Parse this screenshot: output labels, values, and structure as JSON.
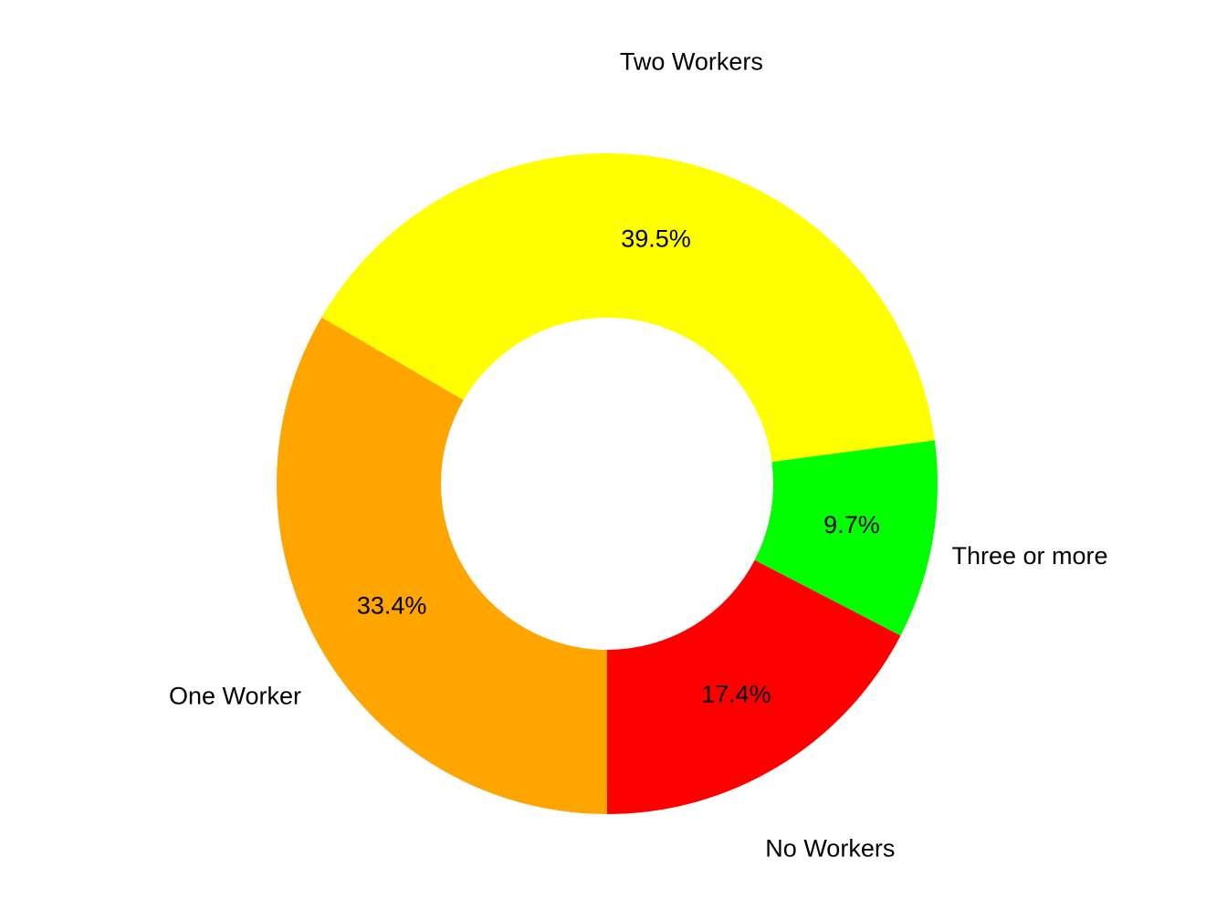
{
  "chart_data": {
    "type": "donut",
    "categories": [
      "No Workers",
      "Three or more",
      "Two Workers",
      "One Worker"
    ],
    "values": [
      17.4,
      9.7,
      39.5,
      33.4
    ],
    "value_labels": [
      "17.4%",
      "9.7%",
      "39.5%",
      "33.4%"
    ],
    "colors": [
      "#ff0000",
      "#00ff00",
      "#ffff00",
      "#ffa500"
    ]
  }
}
